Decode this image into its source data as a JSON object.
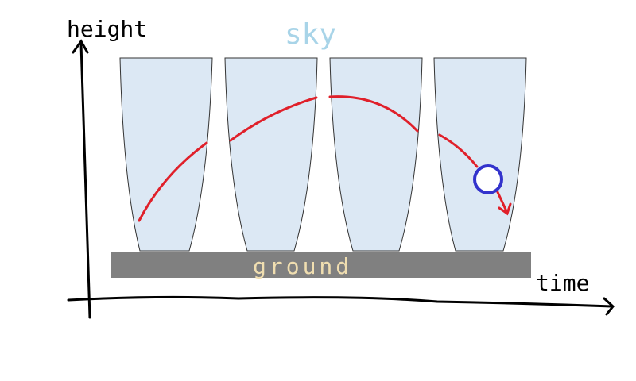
{
  "labels": {
    "y_axis": "height",
    "sky": "sky",
    "ground": "ground",
    "x_axis": "time"
  }
}
